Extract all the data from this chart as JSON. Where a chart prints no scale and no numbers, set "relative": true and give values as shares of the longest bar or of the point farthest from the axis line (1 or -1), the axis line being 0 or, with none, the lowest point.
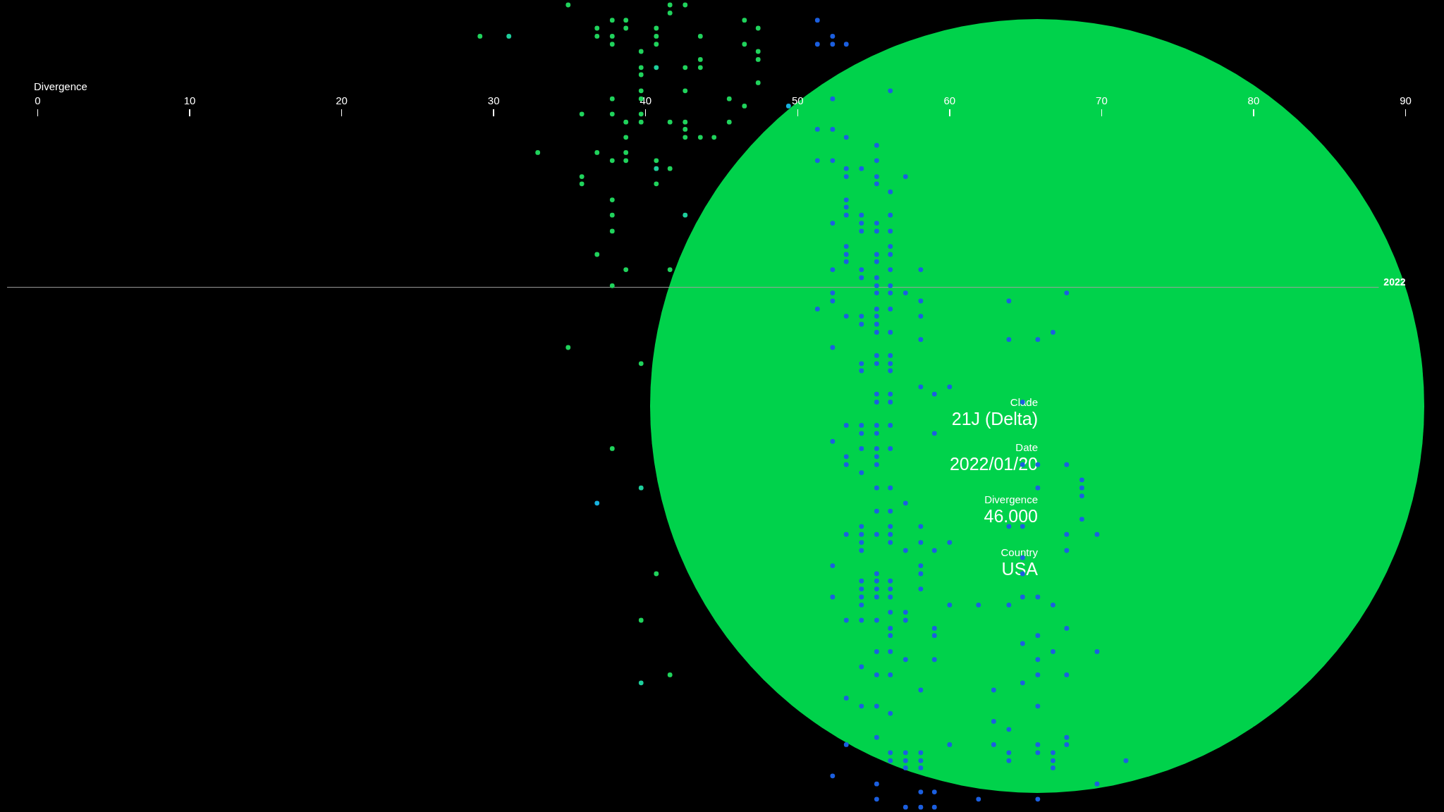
{
  "chart_data": {
    "type": "scatter",
    "xlabel": "Divergence",
    "relative": true,
    "xlim": [
      0,
      90
    ],
    "xticks": [
      0,
      10,
      20,
      30,
      40,
      50,
      60,
      70,
      80,
      90
    ],
    "legend": false,
    "grid": false,
    "marker": "circle",
    "series": [
      {
        "color": "#20d35c",
        "x": [
          34.9,
          41.6,
          42.6,
          41.6,
          37.8,
          38.7,
          46.5,
          36.8,
          38.7,
          40.7,
          47.4,
          29.1,
          36.8,
          37.8,
          40.7,
          43.6,
          37.8,
          40.7,
          46.5,
          39.7,
          47.4,
          43.6,
          47.4,
          39.7,
          42.6,
          43.6,
          39.7,
          47.4,
          39.7,
          42.6,
          37.8,
          39.7,
          45.5,
          46.5,
          35.8,
          37.8,
          39.7,
          38.7,
          39.7,
          41.6,
          42.6,
          45.5,
          42.6,
          38.7,
          42.6,
          43.6,
          44.5,
          32.9,
          36.8,
          38.7,
          37.8,
          38.7,
          40.7,
          41.6,
          35.8,
          35.8,
          40.7,
          37.8,
          37.8,
          37.8,
          36.8,
          38.7,
          41.6,
          37.8,
          34.9,
          39.7,
          37.8,
          40.7,
          39.7,
          41.6
        ],
        "values": [
          1,
          1,
          1,
          0.99,
          0.981,
          0.981,
          0.981,
          0.971,
          0.971,
          0.971,
          0.971,
          0.961,
          0.961,
          0.961,
          0.961,
          0.961,
          0.951,
          0.951,
          0.951,
          0.942,
          0.942,
          0.932,
          0.932,
          0.922,
          0.922,
          0.922,
          0.913,
          0.903,
          0.893,
          0.893,
          0.883,
          0.883,
          0.883,
          0.874,
          0.864,
          0.864,
          0.864,
          0.854,
          0.854,
          0.854,
          0.854,
          0.854,
          0.845,
          0.835,
          0.835,
          0.835,
          0.835,
          0.816,
          0.816,
          0.816,
          0.806,
          0.806,
          0.806,
          0.796,
          0.786,
          0.777,
          0.777,
          0.757,
          0.738,
          0.718,
          0.689,
          0.67,
          0.67,
          0.65,
          0.573,
          0.553,
          0.447,
          0.291,
          0.233,
          0.165
        ]
      },
      {
        "color": "#1ecf9c",
        "x": [
          31,
          40.7,
          40.7,
          42.6,
          39.7,
          39.7
        ],
        "values": [
          0.961,
          0.922,
          0.796,
          0.738,
          0.398,
          0.155
        ]
      },
      {
        "color": "#17b2df",
        "x": [
          49.4,
          36.8
        ],
        "values": [
          0.874,
          0.379
        ]
      },
      {
        "color": "#1b5fe0",
        "x": [
          51.3,
          52.3,
          51.3,
          52.3,
          53.2,
          56.1,
          52.3,
          51.3,
          52.3,
          53.2,
          55.2,
          51.3,
          52.3,
          55.2,
          53.2,
          54.2,
          53.2,
          55.2,
          57.1,
          55.2,
          56.1,
          53.2,
          53.2,
          53.2,
          54.2,
          56.1,
          52.3,
          54.2,
          55.2,
          54.2,
          55.2,
          56.1,
          53.2,
          56.1,
          53.2,
          55.2,
          56.1,
          53.2,
          55.2,
          52.3,
          54.2,
          56.1,
          58.1,
          54.2,
          55.2,
          55.2,
          56.1,
          52.3,
          55.2,
          56.1,
          57.1,
          67.7,
          52.3,
          58.1,
          63.9,
          51.3,
          55.2,
          56.1,
          53.2,
          54.2,
          55.2,
          58.1,
          54.2,
          55.2,
          55.2,
          56.1,
          66.8,
          58.1,
          63.9,
          65.8,
          52.3,
          55.2,
          56.1,
          54.2,
          55.2,
          56.1,
          54.2,
          56.1,
          58.1,
          60,
          55.2,
          56.1,
          59,
          55.2,
          56.1,
          64.8,
          53.2,
          54.2,
          55.2,
          56.1,
          54.2,
          55.2,
          59,
          52.3,
          54.2,
          55.2,
          56.1,
          53.2,
          55.2,
          53.2,
          55.2,
          64.8,
          65.8,
          67.7,
          54.2,
          68.7,
          55.2,
          56.1,
          65.8,
          68.7,
          68.7,
          57.1,
          55.2,
          56.1,
          68.7,
          54.2,
          56.1,
          58.1,
          63.9,
          64.8,
          53.2,
          54.2,
          55.2,
          56.1,
          67.7,
          69.7,
          54.2,
          56.1,
          58.1,
          60,
          54.2,
          57.1,
          59,
          67.7,
          64.8,
          52.3,
          58.1,
          55.2,
          58.1,
          64.8,
          54.2,
          55.2,
          56.1,
          54.2,
          55.2,
          56.1,
          58.1,
          52.3,
          54.2,
          55.2,
          56.1,
          64.8,
          65.8,
          54.2,
          60,
          61.9,
          63.9,
          66.8,
          56.1,
          57.1,
          53.2,
          54.2,
          55.2,
          57.1,
          56.1,
          59,
          67.7,
          56.1,
          59,
          65.8,
          64.8,
          55.2,
          56.1,
          66.8,
          69.7,
          57.1,
          59,
          65.8,
          54.2,
          55.2,
          56.1,
          65.8,
          67.7,
          64.8,
          58.1,
          62.9,
          53.2,
          54.2,
          55.2,
          65.8,
          56.1,
          62.9,
          63.9,
          55.2,
          67.7,
          53.2,
          60,
          62.9,
          65.8,
          67.7,
          56.1,
          57.1,
          58.1,
          63.9,
          65.8,
          66.8,
          56.1,
          57.1,
          58.1,
          63.9,
          66.8,
          71.6,
          57.1,
          58.1,
          66.8,
          52.3,
          55.2,
          69.7,
          58.1,
          59,
          55.2,
          61.9,
          65.8,
          57.1,
          58.1,
          59
        ],
        "values": [
          0.981,
          0.961,
          0.951,
          0.951,
          0.951,
          0.893,
          0.883,
          0.845,
          0.845,
          0.835,
          0.825,
          0.806,
          0.806,
          0.806,
          0.796,
          0.796,
          0.786,
          0.786,
          0.786,
          0.777,
          0.767,
          0.757,
          0.748,
          0.738,
          0.738,
          0.738,
          0.728,
          0.728,
          0.728,
          0.718,
          0.718,
          0.718,
          0.699,
          0.699,
          0.689,
          0.689,
          0.689,
          0.68,
          0.68,
          0.67,
          0.67,
          0.67,
          0.67,
          0.66,
          0.66,
          0.65,
          0.65,
          0.641,
          0.641,
          0.641,
          0.641,
          0.641,
          0.631,
          0.631,
          0.631,
          0.621,
          0.621,
          0.621,
          0.612,
          0.612,
          0.612,
          0.612,
          0.602,
          0.602,
          0.592,
          0.592,
          0.592,
          0.583,
          0.583,
          0.583,
          0.573,
          0.563,
          0.563,
          0.553,
          0.553,
          0.553,
          0.544,
          0.544,
          0.524,
          0.524,
          0.515,
          0.515,
          0.515,
          0.505,
          0.505,
          0.505,
          0.476,
          0.476,
          0.476,
          0.476,
          0.466,
          0.466,
          0.466,
          0.456,
          0.447,
          0.447,
          0.447,
          0.437,
          0.437,
          0.427,
          0.427,
          0.427,
          0.427,
          0.427,
          0.417,
          0.408,
          0.398,
          0.398,
          0.398,
          0.398,
          0.388,
          0.379,
          0.369,
          0.369,
          0.359,
          0.35,
          0.35,
          0.35,
          0.35,
          0.35,
          0.34,
          0.34,
          0.34,
          0.34,
          0.34,
          0.34,
          0.33,
          0.33,
          0.33,
          0.33,
          0.32,
          0.32,
          0.32,
          0.32,
          0.311,
          0.301,
          0.301,
          0.291,
          0.291,
          0.291,
          0.282,
          0.282,
          0.282,
          0.272,
          0.272,
          0.272,
          0.272,
          0.262,
          0.262,
          0.262,
          0.262,
          0.262,
          0.262,
          0.252,
          0.252,
          0.252,
          0.252,
          0.252,
          0.243,
          0.243,
          0.233,
          0.233,
          0.233,
          0.233,
          0.223,
          0.223,
          0.223,
          0.214,
          0.214,
          0.214,
          0.204,
          0.194,
          0.194,
          0.194,
          0.194,
          0.184,
          0.184,
          0.184,
          0.175,
          0.165,
          0.165,
          0.165,
          0.165,
          0.155,
          0.146,
          0.146,
          0.136,
          0.126,
          0.126,
          0.126,
          0.117,
          0.107,
          0.097,
          0.087,
          0.087,
          0.078,
          0.078,
          0.078,
          0.078,
          0.078,
          0.068,
          0.068,
          0.068,
          0.068,
          0.068,
          0.068,
          0.058,
          0.058,
          0.058,
          0.058,
          0.058,
          0.058,
          0.049,
          0.049,
          0.049,
          0.039,
          0.029,
          0.029,
          0.019,
          0.019,
          0.01,
          0.01,
          0.01,
          0,
          0,
          0
        ]
      }
    ],
    "ref_lines": [
      {
        "axis": "y",
        "value": 0.648,
        "color": "#a0a0a0"
      }
    ],
    "annotations": [
      "Clade",
      "21J (Delta)",
      "Date",
      "2022/01/20",
      "Divergence",
      "46.000",
      "Country",
      "USA",
      "2022"
    ]
  }
}
